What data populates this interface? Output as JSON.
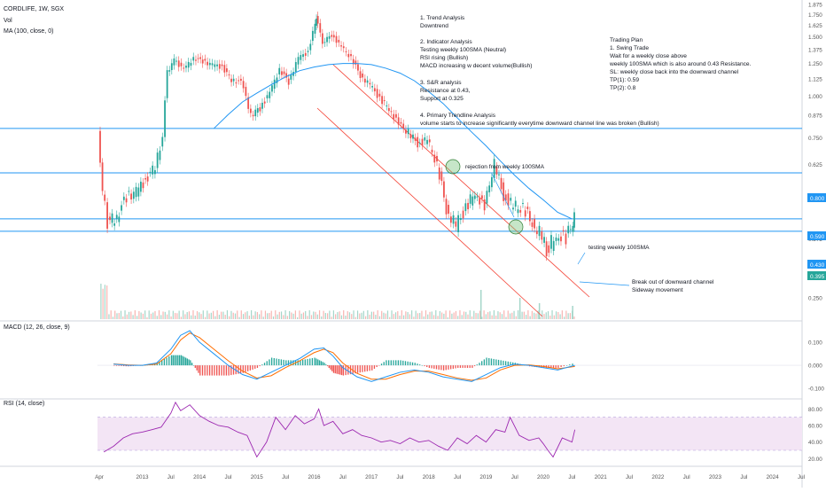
{
  "header": {
    "symbol_line": "CORDLIFE, 1W, SGX",
    "vol_label": "Vol",
    "ma_label": "MA (100, close, 0)",
    "macd_label": "MACD (12, 26, close, 9)",
    "rsi_label": "RSI (14, close)"
  },
  "annotations": {
    "analysis": [
      "1. Trend Analysis",
      "Downtrend",
      "",
      "2. Indicator Analysis",
      "Testing weekly 100SMA (Neutral)",
      "RSI rising (Bullish)",
      "MACD increasing w decent volume(Bullish)",
      "",
      "3. S&R analysis",
      "Resistance at 0.43,",
      "Support at 0.325",
      "",
      "4. Primary Trendline Analysis",
      "volume starts to increase significantly everytime downward channel line was broken (Bullish)"
    ],
    "trading_plan": [
      "Trading Plan",
      "1. Swing Trade",
      "Wait for a weekly close above",
      "weekly 100SMA which is also around 0.43 Resistance.",
      "SL: weekly close back into the downward channel",
      "TP(1): 0.59",
      "TP(2): 0.8"
    ],
    "rejection": "rejection from weekly 100SMA",
    "testing": "testing weekly 100SMA",
    "breakout": [
      "Break out of downward channel",
      "Sideway movement"
    ]
  },
  "colors": {
    "up": "#26a69a",
    "down": "#ef5350",
    "ma": "#2196f3",
    "macd": "#2196f3",
    "signal": "#ff6d00",
    "rsi": "#9c27b0",
    "hline": "#2196f3",
    "channel": "#f44336",
    "rsi_band": "#f3e5f5"
  },
  "chart_data": [
    {
      "type": "line",
      "title": "CORDLIFE, 1W, SGX",
      "y_ticks": [
        "1.875",
        "1.750",
        "1.625",
        "1.500",
        "1.375",
        "1.250",
        "1.125",
        "1.000",
        "0.875",
        "0.750",
        "0.625",
        "0.500",
        "0.375",
        "0.250"
      ],
      "ylim": [
        0.17,
        1.875
      ],
      "price_labels": [
        "0.800",
        "0.590",
        "0.430",
        "0.395"
      ],
      "horizontal_levels": [
        0.8,
        0.59,
        0.43,
        0.395
      ],
      "x_labels": [
        "Apr",
        "2013",
        "Jul",
        "2014",
        "Jul",
        "2015",
        "Jul",
        "2016",
        "Jul",
        "2017",
        "Jul",
        "2018",
        "Jul",
        "2019",
        "Jul",
        "2020",
        "Jul",
        "2021",
        "Jul",
        "2022",
        "Jul",
        "2023",
        "Jul",
        "2024",
        "Jul"
      ],
      "x_label_years": [
        2012.25,
        2013.0,
        2013.5,
        2014.0,
        2014.5,
        2015.0,
        2015.5,
        2016.0,
        2016.5,
        2017.0,
        2017.5,
        2018.0,
        2018.5,
        2019.0,
        2019.5,
        2020.0,
        2020.5,
        2021.0,
        2021.5,
        2022.0,
        2022.5,
        2023.0,
        2023.5,
        2024.0,
        2024.5
      ],
      "series": [
        {
          "name": "Price",
          "x": [
            2012.25,
            2012.33,
            2012.42,
            2012.58,
            2012.75,
            2012.92,
            2013.08,
            2013.25,
            2013.38,
            2013.46,
            2013.58,
            2013.75,
            2013.92,
            2014.08,
            2014.25,
            2014.42,
            2014.58,
            2014.75,
            2014.92,
            2015.08,
            2015.25,
            2015.42,
            2015.58,
            2015.75,
            2015.92,
            2016.0,
            2016.05,
            2016.17,
            2016.33,
            2016.5,
            2016.67,
            2016.83,
            2017.0,
            2017.17,
            2017.33,
            2017.5,
            2017.67,
            2017.83,
            2018.0,
            2018.17,
            2018.33,
            2018.5,
            2018.67,
            2018.83,
            2019.0,
            2019.17,
            2019.33,
            2019.5,
            2019.67,
            2019.83,
            2020.0,
            2020.08,
            2020.25,
            2020.42,
            2020.5,
            2020.55
          ],
          "y": [
            0.78,
            0.52,
            0.42,
            0.44,
            0.5,
            0.52,
            0.56,
            0.62,
            0.75,
            1.18,
            1.28,
            1.2,
            1.3,
            1.27,
            1.24,
            1.22,
            1.12,
            1.1,
            0.88,
            0.92,
            1.02,
            1.2,
            1.1,
            1.3,
            1.35,
            1.55,
            1.72,
            1.45,
            1.52,
            1.4,
            1.3,
            1.15,
            1.08,
            0.98,
            0.92,
            0.82,
            0.78,
            0.72,
            0.74,
            0.62,
            0.46,
            0.41,
            0.46,
            0.52,
            0.46,
            0.63,
            0.5,
            0.47,
            0.46,
            0.42,
            0.38,
            0.34,
            0.39,
            0.37,
            0.41,
            0.43
          ]
        },
        {
          "name": "MA (100, close, 0)",
          "x": [
            2014.25,
            2014.5,
            2014.75,
            2015.0,
            2015.25,
            2015.5,
            2015.75,
            2016.0,
            2016.25,
            2016.5,
            2016.75,
            2017.0,
            2017.25,
            2017.5,
            2017.75,
            2018.0,
            2018.25,
            2018.5,
            2018.75,
            2019.0,
            2019.25,
            2019.5,
            2019.75,
            2020.0,
            2020.25,
            2020.5
          ],
          "y": [
            0.8,
            0.88,
            0.96,
            1.02,
            1.08,
            1.14,
            1.19,
            1.22,
            1.24,
            1.25,
            1.25,
            1.24,
            1.21,
            1.17,
            1.11,
            1.03,
            0.95,
            0.86,
            0.78,
            0.71,
            0.64,
            0.58,
            0.53,
            0.49,
            0.45,
            0.43
          ]
        }
      ],
      "volume_spikes": [
        {
          "x": 2018.9,
          "v": 0.55
        },
        {
          "x": 2019.58,
          "v": 0.4
        },
        {
          "x": 2019.92,
          "v": 0.3
        },
        {
          "x": 2020.5,
          "v": 0.25
        }
      ]
    },
    {
      "type": "line",
      "title": "MACD (12, 26, close, 9)",
      "y_ticks": [
        "0.100",
        "0.000",
        "-0.100"
      ],
      "ylim": [
        -0.13,
        0.15
      ],
      "series": [
        {
          "name": "MACD",
          "x": [
            2012.5,
            2012.75,
            2013.0,
            2013.25,
            2013.5,
            2013.67,
            2013.83,
            2014.0,
            2014.25,
            2014.5,
            2014.75,
            2015.0,
            2015.25,
            2015.5,
            2015.75,
            2016.0,
            2016.17,
            2016.33,
            2016.5,
            2016.75,
            2017.0,
            2017.25,
            2017.5,
            2017.75,
            2018.0,
            2018.25,
            2018.5,
            2018.75,
            2019.0,
            2019.25,
            2019.5,
            2019.75,
            2020.0,
            2020.25,
            2020.55
          ],
          "y": [
            0.005,
            0.0,
            0.0,
            0.01,
            0.07,
            0.13,
            0.15,
            0.1,
            0.05,
            0.0,
            -0.04,
            -0.06,
            -0.03,
            0.0,
            0.03,
            0.07,
            0.075,
            0.04,
            -0.01,
            -0.05,
            -0.07,
            -0.05,
            -0.03,
            -0.02,
            -0.03,
            -0.05,
            -0.06,
            -0.07,
            -0.04,
            -0.01,
            0.005,
            0.0,
            -0.01,
            -0.02,
            0.0
          ]
        },
        {
          "name": "Signal",
          "x": [
            2012.5,
            2012.75,
            2013.0,
            2013.25,
            2013.5,
            2013.67,
            2013.83,
            2014.0,
            2014.25,
            2014.5,
            2014.75,
            2015.0,
            2015.25,
            2015.5,
            2015.75,
            2016.0,
            2016.17,
            2016.33,
            2016.5,
            2016.75,
            2017.0,
            2017.25,
            2017.5,
            2017.75,
            2018.0,
            2018.25,
            2018.5,
            2018.75,
            2019.0,
            2019.25,
            2019.5,
            2019.75,
            2020.0,
            2020.25,
            2020.55
          ],
          "y": [
            0.006,
            0.002,
            0.0,
            0.005,
            0.05,
            0.11,
            0.14,
            0.12,
            0.07,
            0.02,
            -0.025,
            -0.055,
            -0.045,
            -0.01,
            0.02,
            0.055,
            0.07,
            0.055,
            0.01,
            -0.035,
            -0.06,
            -0.06,
            -0.04,
            -0.025,
            -0.025,
            -0.04,
            -0.055,
            -0.065,
            -0.055,
            -0.02,
            0.0,
            0.002,
            -0.005,
            -0.015,
            -0.005
          ]
        }
      ]
    },
    {
      "type": "line",
      "title": "RSI (14, close)",
      "y_ticks": [
        "80.00",
        "60.00",
        "40.00",
        "20.00"
      ],
      "ylim": [
        15,
        90
      ],
      "band": [
        30,
        70
      ],
      "series": [
        {
          "name": "RSI",
          "x": [
            2012.33,
            2012.5,
            2012.67,
            2012.83,
            2013.0,
            2013.17,
            2013.33,
            2013.5,
            2013.58,
            2013.67,
            2013.83,
            2014.0,
            2014.17,
            2014.33,
            2014.5,
            2014.67,
            2014.83,
            2015.0,
            2015.17,
            2015.33,
            2015.5,
            2015.67,
            2015.83,
            2016.0,
            2016.08,
            2016.17,
            2016.33,
            2016.5,
            2016.67,
            2016.83,
            2017.0,
            2017.17,
            2017.33,
            2017.5,
            2017.67,
            2017.83,
            2018.0,
            2018.17,
            2018.33,
            2018.5,
            2018.67,
            2018.83,
            2019.0,
            2019.17,
            2019.33,
            2019.42,
            2019.58,
            2019.75,
            2019.92,
            2020.0,
            2020.08,
            2020.17,
            2020.33,
            2020.5,
            2020.55
          ],
          "y": [
            28,
            35,
            45,
            50,
            52,
            55,
            58,
            75,
            88,
            78,
            85,
            72,
            65,
            60,
            58,
            52,
            48,
            22,
            40,
            70,
            55,
            72,
            62,
            68,
            80,
            60,
            65,
            50,
            55,
            48,
            45,
            40,
            42,
            38,
            45,
            40,
            42,
            35,
            30,
            45,
            38,
            48,
            40,
            55,
            52,
            70,
            48,
            42,
            45,
            38,
            30,
            22,
            45,
            40,
            55
          ]
        }
      ]
    }
  ]
}
